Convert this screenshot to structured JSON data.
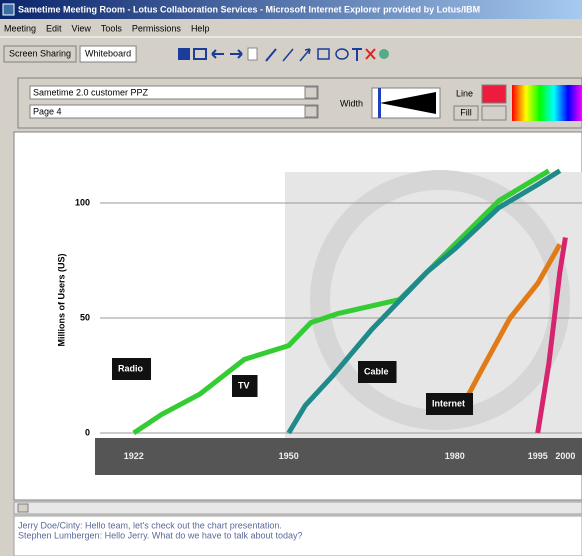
{
  "window": {
    "title": "Sametime Meeting Room - Lotus Collaboration Services - Microsoft Internet Explorer provided by Lotus/IBM",
    "menu": [
      "Meeting",
      "Edit",
      "View",
      "Tools",
      "Permissions",
      "Help"
    ],
    "tabs": [
      "Screen Sharing",
      "Whiteboard"
    ],
    "document": "Sametime 2.0 customer PPZ",
    "page": "Page 4",
    "width_label": "Width",
    "line_label": "Line",
    "fill_label": "Fill"
  },
  "chart_data": {
    "type": "line",
    "ylabel": "Millions of Users (US)",
    "xlim": [
      1915,
      2003
    ],
    "xticks": [
      1922,
      1950,
      1980,
      1995,
      2000
    ],
    "ylim": [
      -12,
      116
    ],
    "yticks": [
      0,
      50,
      100
    ],
    "grid": true,
    "series": [
      {
        "name": "Radio",
        "color": "#33cc33",
        "x": [
          1922,
          1927,
          1934,
          1942,
          1950,
          1954,
          1959,
          1970,
          1980,
          1988,
          1997
        ],
        "values": [
          0,
          8,
          17,
          32,
          38,
          48,
          52,
          58,
          82,
          101,
          114
        ]
      },
      {
        "name": "TV",
        "color": "#1f8a8a",
        "x": [
          1950,
          1953,
          1958,
          1965,
          1975,
          1980,
          1988,
          1995,
          1999
        ],
        "values": [
          0,
          12,
          25,
          45,
          70,
          80,
          98,
          108,
          114
        ]
      },
      {
        "name": "Cable",
        "color": "#e07b18",
        "x": [
          1981,
          1985,
          1990,
          1995,
          1999
        ],
        "values": [
          10,
          28,
          50,
          65,
          82
        ]
      },
      {
        "name": "Internet",
        "color": "#d6256e",
        "x": [
          1995,
          1997,
          1999,
          2000
        ],
        "values": [
          0,
          30,
          70,
          85
        ]
      }
    ]
  },
  "chat": [
    "Jerry Doe/Cinty: Hello team, let's check out the chart presentation.",
    "Stephen Lumbergen: Hello Jerry. What do we have to talk about today?"
  ]
}
